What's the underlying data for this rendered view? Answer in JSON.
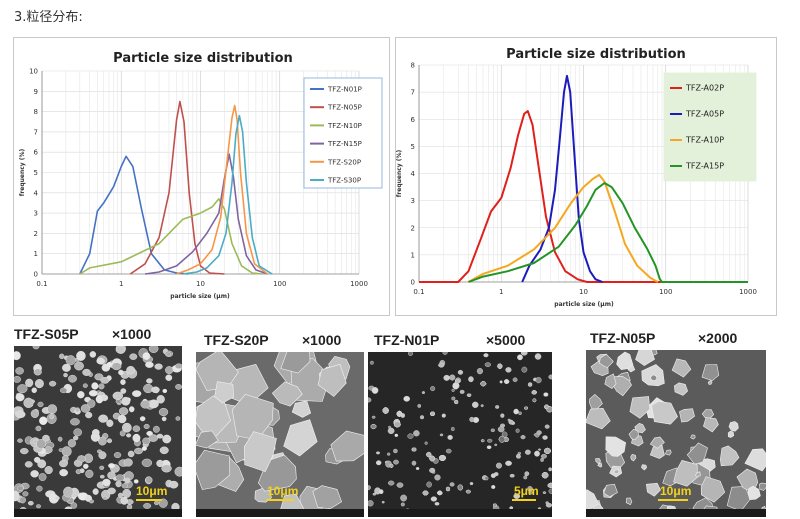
{
  "heading": "3.粒径分布:",
  "chart_data": [
    {
      "type": "line",
      "title": "Particle size distribution",
      "xlabel": "particle size (μm)",
      "ylabel": "frequency (%)",
      "xscale": "log",
      "xlim": [
        0.1,
        1000
      ],
      "ylim": [
        0,
        10
      ],
      "x_ticks": [
        "0.1",
        "1",
        "10",
        "100",
        "1000"
      ],
      "y_ticks": [
        "0",
        "1",
        "2",
        "3",
        "4",
        "5",
        "6",
        "7",
        "8",
        "9",
        "10"
      ],
      "legend_position": "top-right",
      "series": [
        {
          "name": "TFZ-N01P",
          "color": "#4472c4",
          "points": [
            [
              0.3,
              0
            ],
            [
              0.4,
              1.0
            ],
            [
              0.5,
              3.1
            ],
            [
              0.6,
              3.5
            ],
            [
              0.8,
              4.3
            ],
            [
              1.0,
              5.3
            ],
            [
              1.15,
              5.8
            ],
            [
              1.4,
              5.3
            ],
            [
              1.8,
              3.2
            ],
            [
              2.4,
              1.0
            ],
            [
              3.5,
              0.2
            ],
            [
              5,
              0.05
            ],
            [
              7,
              0
            ]
          ]
        },
        {
          "name": "TFZ-N05P",
          "color": "#c0504d",
          "points": [
            [
              1.3,
              0
            ],
            [
              2.0,
              0.5
            ],
            [
              3.0,
              1.8
            ],
            [
              4.0,
              4.0
            ],
            [
              5.0,
              7.6
            ],
            [
              5.5,
              8.5
            ],
            [
              6.2,
              7.5
            ],
            [
              7.2,
              4.0
            ],
            [
              8.5,
              1.5
            ],
            [
              10,
              0.4
            ],
            [
              13,
              0.05
            ],
            [
              20,
              0
            ]
          ]
        },
        {
          "name": "TFZ-N10P",
          "color": "#9bbb59",
          "points": [
            [
              0.3,
              0
            ],
            [
              0.4,
              0.3
            ],
            [
              1.0,
              0.6
            ],
            [
              3.0,
              1.5
            ],
            [
              6.0,
              2.7
            ],
            [
              10,
              3.0
            ],
            [
              14,
              3.3
            ],
            [
              17,
              3.7
            ],
            [
              20,
              3.2
            ],
            [
              25,
              1.5
            ],
            [
              33,
              0.4
            ],
            [
              45,
              0.05
            ],
            [
              60,
              0
            ]
          ]
        },
        {
          "name": "TFZ-N15P",
          "color": "#8064a2",
          "points": [
            [
              2,
              0
            ],
            [
              3,
              0.1
            ],
            [
              5,
              0.4
            ],
            [
              8,
              1.1
            ],
            [
              12,
              2.0
            ],
            [
              17,
              3.0
            ],
            [
              20,
              4.7
            ],
            [
              23,
              5.9
            ],
            [
              26,
              4.8
            ],
            [
              30,
              2.7
            ],
            [
              38,
              0.9
            ],
            [
              50,
              0.2
            ],
            [
              70,
              0
            ]
          ]
        },
        {
          "name": "TFZ-S20P",
          "color": "#f79646",
          "points": [
            [
              5,
              0
            ],
            [
              7,
              0.2
            ],
            [
              10,
              0.5
            ],
            [
              14,
              1.2
            ],
            [
              18,
              2.8
            ],
            [
              22,
              5.8
            ],
            [
              25,
              7.7
            ],
            [
              27,
              8.3
            ],
            [
              29,
              7.6
            ],
            [
              32,
              5.0
            ],
            [
              38,
              2.0
            ],
            [
              48,
              0.5
            ],
            [
              70,
              0
            ]
          ]
        },
        {
          "name": "TFZ-S30P",
          "color": "#4bacc6",
          "points": [
            [
              6,
              0
            ],
            [
              9,
              0.1
            ],
            [
              12,
              0.3
            ],
            [
              17,
              0.9
            ],
            [
              21,
              2.0
            ],
            [
              25,
              4.5
            ],
            [
              28,
              6.9
            ],
            [
              31,
              7.8
            ],
            [
              34,
              7.0
            ],
            [
              38,
              4.5
            ],
            [
              45,
              1.8
            ],
            [
              55,
              0.4
            ],
            [
              80,
              0
            ]
          ]
        }
      ]
    },
    {
      "type": "line",
      "title": "Particle size distribution",
      "xlabel": "particle size (μm)",
      "ylabel": "frequency (%)",
      "xscale": "log",
      "xlim": [
        0.1,
        1000
      ],
      "ylim": [
        0,
        8
      ],
      "x_ticks": [
        "0.1",
        "1",
        "10",
        "100",
        "1000"
      ],
      "y_ticks": [
        "0",
        "1",
        "2",
        "3",
        "4",
        "5",
        "6",
        "7",
        "8"
      ],
      "legend_position": "top-right",
      "series": [
        {
          "name": "TFZ-A02P",
          "color": "#e0201b",
          "points": [
            [
              0.1,
              0
            ],
            [
              0.3,
              0
            ],
            [
              0.4,
              0.4
            ],
            [
              0.55,
              1.5
            ],
            [
              0.75,
              2.6
            ],
            [
              1.0,
              3.1
            ],
            [
              1.3,
              4.2
            ],
            [
              1.6,
              5.4
            ],
            [
              1.9,
              6.2
            ],
            [
              2.1,
              6.3
            ],
            [
              2.4,
              5.8
            ],
            [
              2.8,
              4.4
            ],
            [
              3.5,
              2.4
            ],
            [
              4.5,
              1.1
            ],
            [
              6,
              0.4
            ],
            [
              8.5,
              0.1
            ],
            [
              11,
              0
            ],
            [
              1000,
              0
            ]
          ]
        },
        {
          "name": "TFZ-A05P",
          "color": "#1c1cbb",
          "points": [
            [
              1.8,
              0
            ],
            [
              2.2,
              0.6
            ],
            [
              3.0,
              1.2
            ],
            [
              3.8,
              2.0
            ],
            [
              4.5,
              3.4
            ],
            [
              5.2,
              5.4
            ],
            [
              5.8,
              7.0
            ],
            [
              6.3,
              7.6
            ],
            [
              6.9,
              7.0
            ],
            [
              7.8,
              4.6
            ],
            [
              8.8,
              2.3
            ],
            [
              10,
              1.1
            ],
            [
              12,
              0.4
            ],
            [
              14,
              0.1
            ],
            [
              17,
              0
            ]
          ]
        },
        {
          "name": "TFZ-A10P",
          "color": "#f4a81f",
          "points": [
            [
              0.4,
              0
            ],
            [
              0.6,
              0.3
            ],
            [
              1.2,
              0.6
            ],
            [
              2.5,
              1.2
            ],
            [
              4.5,
              2.0
            ],
            [
              7,
              2.9
            ],
            [
              10,
              3.5
            ],
            [
              13,
              3.8
            ],
            [
              15.5,
              3.95
            ],
            [
              18,
              3.7
            ],
            [
              24,
              2.6
            ],
            [
              32,
              1.4
            ],
            [
              45,
              0.6
            ],
            [
              65,
              0.15
            ],
            [
              80,
              0
            ]
          ]
        },
        {
          "name": "TFZ-A15P",
          "color": "#249426",
          "points": [
            [
              0.4,
              0
            ],
            [
              0.6,
              0.2
            ],
            [
              1.2,
              0.4
            ],
            [
              2.5,
              0.7
            ],
            [
              5,
              1.3
            ],
            [
              8,
              2.1
            ],
            [
              11,
              2.8
            ],
            [
              14,
              3.4
            ],
            [
              18,
              3.65
            ],
            [
              22,
              3.5
            ],
            [
              30,
              2.9
            ],
            [
              42,
              2.0
            ],
            [
              60,
              1.2
            ],
            [
              75,
              0.6
            ],
            [
              85,
              0.1
            ],
            [
              90,
              0
            ],
            [
              1000,
              0
            ]
          ]
        }
      ]
    }
  ],
  "sem_images": [
    {
      "sample": "TFZ-S05P",
      "magnification": "×1000",
      "scale_bar": "10μm"
    },
    {
      "sample": "TFZ-S20P",
      "magnification": "×1000",
      "scale_bar": "10μm"
    },
    {
      "sample": "TFZ-N01P",
      "magnification": "×5000",
      "scale_bar": "5μm"
    },
    {
      "sample": "TFZ-N05P",
      "magnification": "×2000",
      "scale_bar": "10μm"
    }
  ]
}
